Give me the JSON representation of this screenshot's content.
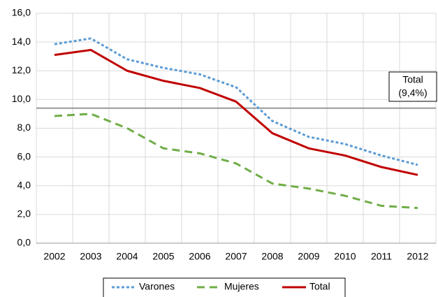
{
  "chart_data": {
    "type": "line",
    "categories": [
      "2002",
      "2003",
      "2004",
      "2005",
      "2006",
      "2007",
      "2008",
      "2009",
      "2010",
      "2011",
      "2012"
    ],
    "series": [
      {
        "name": "Varones",
        "color": "#5b9bd5",
        "dash": "4,3",
        "values": [
          13.85,
          14.25,
          12.8,
          12.2,
          11.75,
          10.85,
          8.5,
          7.4,
          6.9,
          6.1,
          5.45
        ]
      },
      {
        "name": "Mujeres",
        "color": "#70ad47",
        "dash": "11,7",
        "values": [
          8.85,
          9.0,
          8.0,
          6.6,
          6.25,
          5.55,
          4.15,
          3.8,
          3.3,
          2.6,
          2.45
        ]
      },
      {
        "name": "Total",
        "color": "#c00000",
        "dash": "none",
        "values": [
          13.1,
          13.45,
          12.0,
          11.3,
          10.8,
          9.85,
          7.65,
          6.6,
          6.1,
          5.3,
          4.75
        ]
      }
    ],
    "ylim": [
      0,
      16
    ],
    "yticks": [
      {
        "value": 0,
        "label": "0,0"
      },
      {
        "value": 2,
        "label": "2,0"
      },
      {
        "value": 4,
        "label": "4,0"
      },
      {
        "value": 6,
        "label": "6,0"
      },
      {
        "value": 8,
        "label": "8,0"
      },
      {
        "value": 10,
        "label": "10,0"
      },
      {
        "value": 12,
        "label": "12,0"
      },
      {
        "value": 14,
        "label": "14,0"
      },
      {
        "value": 16,
        "label": "16,0"
      }
    ],
    "reference_line": {
      "value": 9.4,
      "color": "#999999",
      "label": [
        "Total",
        "(9,4%)"
      ]
    },
    "grid": true,
    "legend": "bottom"
  }
}
